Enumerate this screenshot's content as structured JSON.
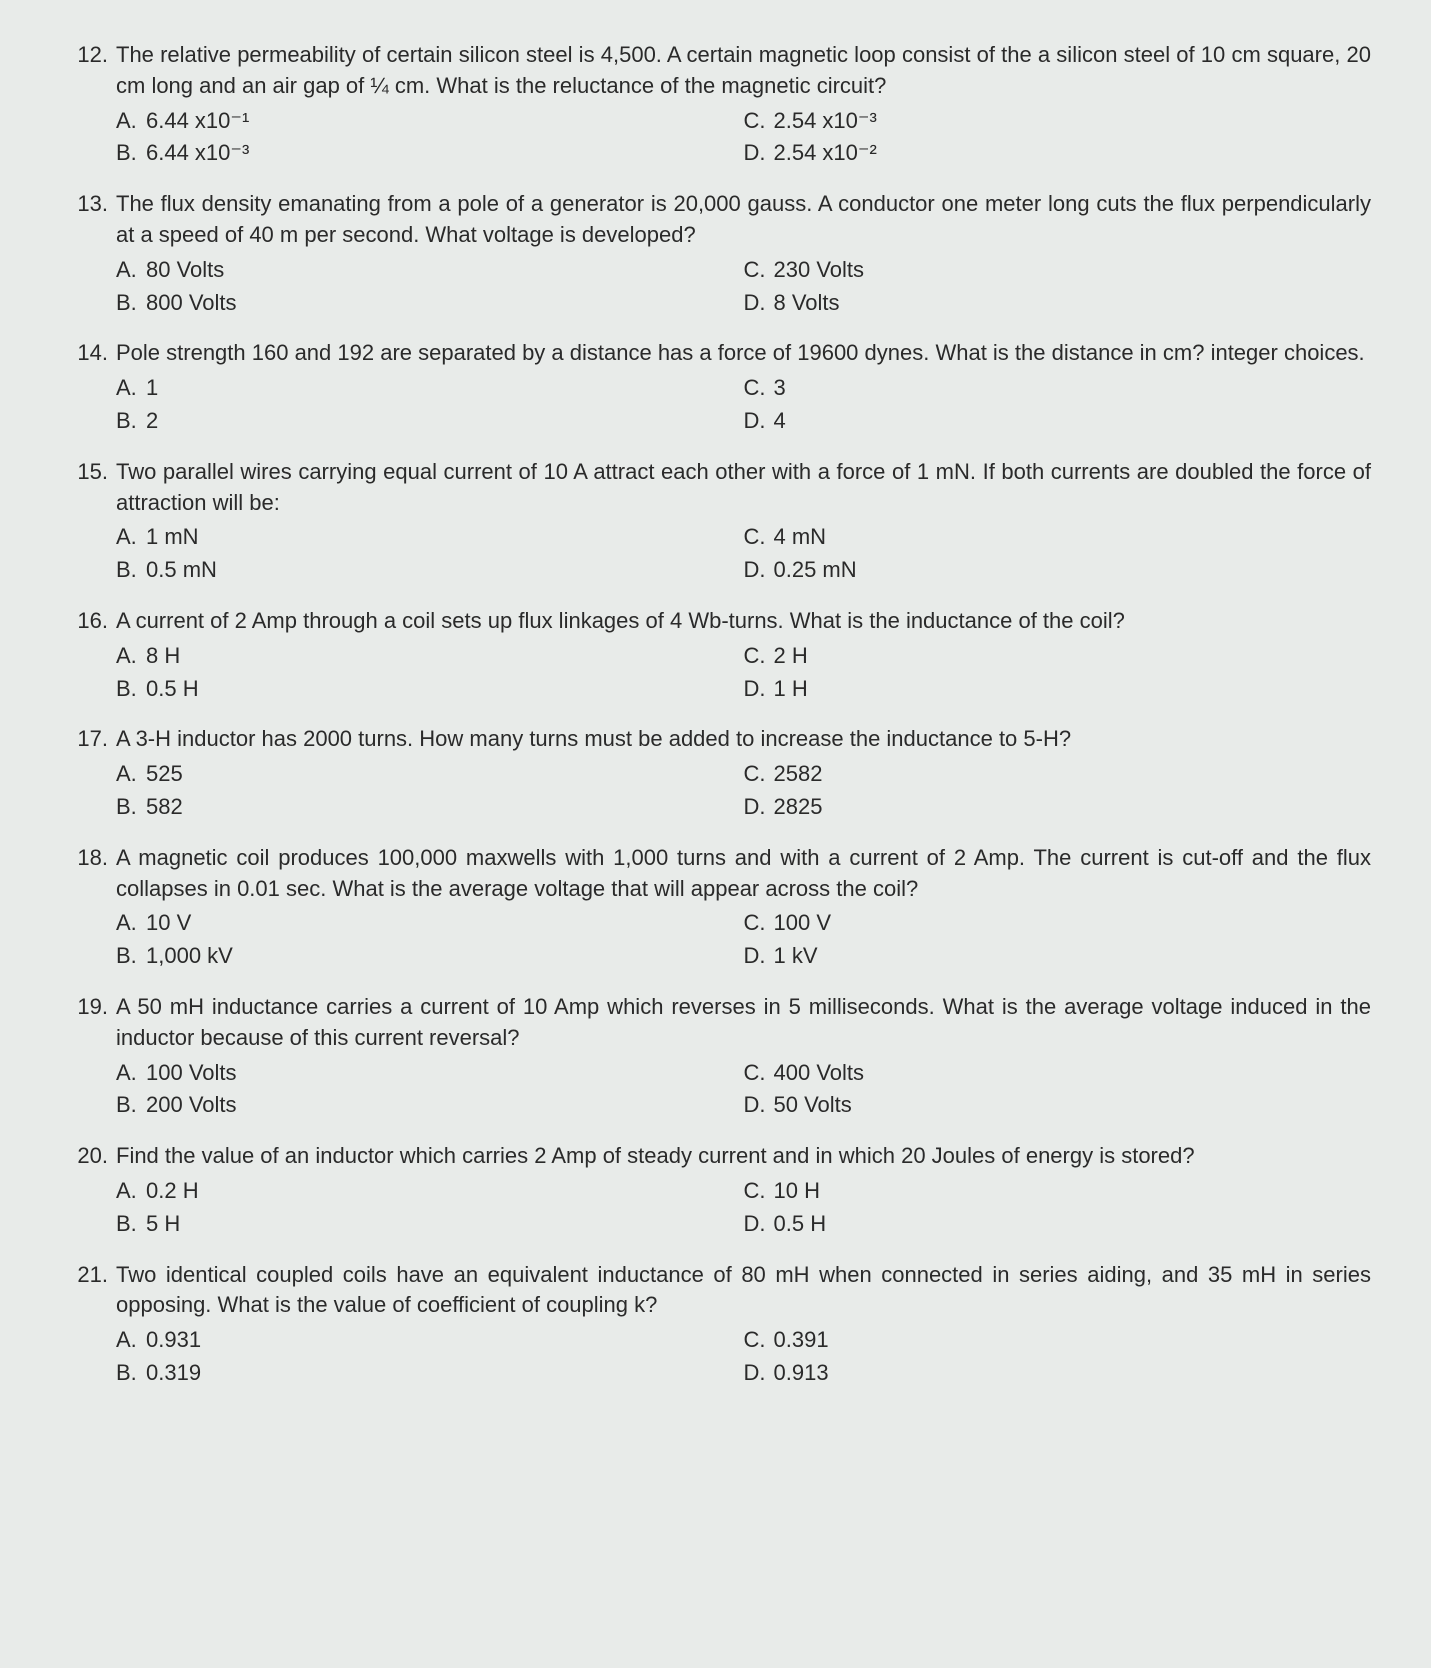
{
  "questions": [
    {
      "num": "12.",
      "text": "The relative permeability of certain silicon steel is 4,500. A certain magnetic loop consist of the a silicon steel of 10 cm square, 20 cm long and an air gap of ¼ cm. What is the reluctance of the magnetic circuit?",
      "A": "6.44 x10⁻¹",
      "B": "6.44 x10⁻³",
      "C": "2.54 x10⁻³",
      "D": "2.54 x10⁻²"
    },
    {
      "num": "13.",
      "text": "The flux density emanating from a pole of a generator is 20,000 gauss. A conductor one meter long cuts the flux perpendicularly at a speed of 40 m per second. What voltage is developed?",
      "A": "80 Volts",
      "B": "800 Volts",
      "C": "230 Volts",
      "D": "8 Volts"
    },
    {
      "num": "14.",
      "text": "Pole strength 160 and 192 are separated by a distance has a force of 19600 dynes. What is the distance in cm? integer choices.",
      "A": "1",
      "B": "2",
      "C": "3",
      "D": "4"
    },
    {
      "num": "15.",
      "text": "Two parallel wires carrying equal current of 10 A attract each other with a force of 1 mN. If both currents are doubled the force of attraction will be:",
      "A": "1 mN",
      "B": "0.5 mN",
      "C": "4 mN",
      "D": "0.25 mN"
    },
    {
      "num": "16.",
      "text": "A current of 2 Amp through a coil sets up flux linkages of 4 Wb-turns. What is the inductance of the coil?",
      "A": "8 H",
      "B": "0.5 H",
      "C": "2 H",
      "D": "1 H"
    },
    {
      "num": "17.",
      "text": "A 3-H inductor has 2000 turns. How many turns must be added to increase the inductance to 5-H?",
      "A": "525",
      "B": "582",
      "C": "2582",
      "D": "2825"
    },
    {
      "num": "18.",
      "text": "A magnetic coil produces 100,000 maxwells with 1,000 turns and with a current of 2 Amp. The current is cut-off and the flux collapses in 0.01 sec. What is the average voltage that will appear across the coil?",
      "A": "10 V",
      "B": "1,000 kV",
      "C": "100 V",
      "D": "1 kV"
    },
    {
      "num": "19.",
      "text": "A 50 mH inductance carries a current of 10 Amp which reverses in 5 milliseconds. What is the average voltage induced in the inductor because of this current reversal?",
      "A": "100 Volts",
      "B": "200 Volts",
      "C": "400 Volts",
      "D": "50 Volts"
    },
    {
      "num": "20.",
      "text": "Find the value of an inductor which carries 2 Amp of steady current and in which 20 Joules of energy is stored?",
      "A": "0.2 H",
      "B": "5 H",
      "C": "10 H",
      "D": "0.5 H"
    },
    {
      "num": "21.",
      "text": "Two identical coupled coils have an equivalent inductance of 80 mH when connected in series aiding, and 35 mH in series opposing. What is the value of coefficient of coupling k?",
      "A": "0.931",
      "B": "0.319",
      "C": "0.391",
      "D": "0.913"
    }
  ],
  "choiceLabels": {
    "A": "A.",
    "B": "B.",
    "C": "C.",
    "D": "D."
  }
}
